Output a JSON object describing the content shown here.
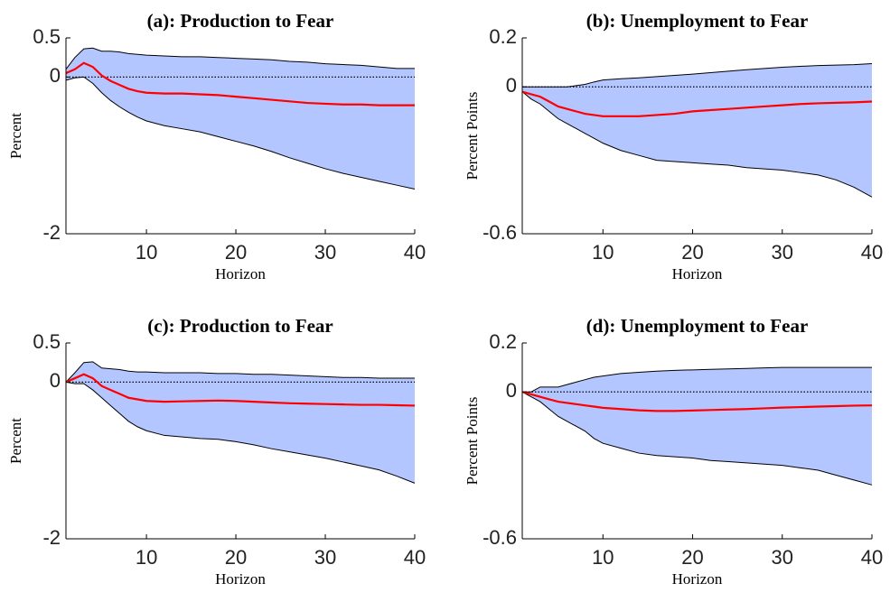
{
  "chart_data": [
    {
      "type": "line",
      "title": "(a): Production to Fear",
      "xlabel": "Horizon",
      "ylabel": "Percent",
      "x": [
        1,
        2,
        3,
        4,
        5,
        6,
        7,
        8,
        9,
        10,
        12,
        14,
        16,
        18,
        20,
        22,
        24,
        26,
        28,
        30,
        32,
        34,
        36,
        38,
        40
      ],
      "series": [
        {
          "color": "#ff0000",
          "values": [
            0.05,
            0.1,
            0.18,
            0.13,
            0.02,
            -0.05,
            -0.1,
            -0.15,
            -0.18,
            -0.2,
            -0.21,
            -0.21,
            -0.22,
            -0.23,
            -0.25,
            -0.27,
            -0.29,
            -0.31,
            -0.33,
            -0.34,
            -0.35,
            -0.35,
            -0.36,
            -0.36,
            -0.36
          ]
        }
      ],
      "band": {
        "color": "#b3c6ff",
        "upper": [
          0.1,
          0.25,
          0.36,
          0.37,
          0.33,
          0.33,
          0.32,
          0.3,
          0.29,
          0.28,
          0.27,
          0.26,
          0.26,
          0.25,
          0.24,
          0.23,
          0.22,
          0.2,
          0.19,
          0.17,
          0.16,
          0.15,
          0.13,
          0.11,
          0.11
        ],
        "lower": [
          -0.04,
          -0.01,
          0.0,
          -0.08,
          -0.2,
          -0.3,
          -0.38,
          -0.45,
          -0.51,
          -0.56,
          -0.62,
          -0.66,
          -0.7,
          -0.76,
          -0.82,
          -0.88,
          -0.95,
          -1.03,
          -1.1,
          -1.17,
          -1.23,
          -1.28,
          -1.33,
          -1.38,
          -1.43
        ]
      },
      "xlim": [
        1,
        40
      ],
      "xticks": [
        10,
        20,
        30,
        40
      ],
      "ylim": [
        -2,
        0.5
      ],
      "yticks": [
        -2,
        0,
        0.5
      ],
      "zero_line": true
    },
    {
      "type": "line",
      "title": "(b): Unemployment to Fear",
      "xlabel": "Horizon",
      "ylabel": "Percent Points",
      "x": [
        1,
        2,
        3,
        4,
        5,
        6,
        7,
        8,
        9,
        10,
        12,
        14,
        16,
        18,
        20,
        22,
        24,
        26,
        28,
        30,
        32,
        34,
        36,
        38,
        40
      ],
      "series": [
        {
          "color": "#ff0000",
          "values": [
            -0.02,
            -0.03,
            -0.04,
            -0.06,
            -0.08,
            -0.09,
            -0.1,
            -0.11,
            -0.115,
            -0.12,
            -0.12,
            -0.12,
            -0.115,
            -0.11,
            -0.1,
            -0.095,
            -0.09,
            -0.085,
            -0.08,
            -0.075,
            -0.07,
            -0.067,
            -0.065,
            -0.063,
            -0.06
          ]
        }
      ],
      "band": {
        "color": "#b3c6ff",
        "upper": [
          0.0,
          0.0,
          0.0,
          0.0,
          0.0,
          0.0,
          0.005,
          0.01,
          0.02,
          0.028,
          0.033,
          0.037,
          0.042,
          0.047,
          0.052,
          0.058,
          0.064,
          0.07,
          0.075,
          0.08,
          0.084,
          0.087,
          0.089,
          0.091,
          0.095
        ],
        "lower": [
          -0.02,
          -0.05,
          -0.07,
          -0.1,
          -0.13,
          -0.15,
          -0.17,
          -0.19,
          -0.21,
          -0.23,
          -0.26,
          -0.28,
          -0.3,
          -0.305,
          -0.31,
          -0.315,
          -0.32,
          -0.33,
          -0.335,
          -0.34,
          -0.35,
          -0.36,
          -0.38,
          -0.41,
          -0.45
        ]
      },
      "xlim": [
        1,
        40
      ],
      "xticks": [
        10,
        20,
        30,
        40
      ],
      "ylim": [
        -0.6,
        0.2
      ],
      "yticks": [
        -0.6,
        0,
        0.2
      ],
      "zero_line": true
    },
    {
      "type": "line",
      "title": "(c): Production to Fear",
      "xlabel": "Horizon",
      "ylabel": "Percent",
      "x": [
        1,
        2,
        3,
        4,
        5,
        6,
        7,
        8,
        9,
        10,
        12,
        14,
        16,
        18,
        20,
        22,
        24,
        26,
        28,
        30,
        32,
        34,
        36,
        38,
        40
      ],
      "series": [
        {
          "color": "#ff0000",
          "values": [
            0.0,
            0.05,
            0.1,
            0.05,
            -0.05,
            -0.1,
            -0.15,
            -0.2,
            -0.22,
            -0.24,
            -0.25,
            -0.245,
            -0.24,
            -0.235,
            -0.24,
            -0.25,
            -0.26,
            -0.27,
            -0.275,
            -0.28,
            -0.285,
            -0.29,
            -0.29,
            -0.295,
            -0.3
          ]
        }
      ],
      "band": {
        "color": "#b3c6ff",
        "upper": [
          0.0,
          0.12,
          0.25,
          0.26,
          0.18,
          0.17,
          0.16,
          0.14,
          0.13,
          0.13,
          0.12,
          0.12,
          0.12,
          0.11,
          0.11,
          0.1,
          0.1,
          0.09,
          0.08,
          0.07,
          0.06,
          0.06,
          0.05,
          0.05,
          0.05
        ],
        "lower": [
          0.0,
          -0.02,
          -0.02,
          -0.1,
          -0.2,
          -0.3,
          -0.4,
          -0.5,
          -0.57,
          -0.62,
          -0.68,
          -0.7,
          -0.72,
          -0.73,
          -0.76,
          -0.8,
          -0.85,
          -0.89,
          -0.93,
          -0.97,
          -1.02,
          -1.07,
          -1.12,
          -1.2,
          -1.29
        ]
      },
      "xlim": [
        1,
        40
      ],
      "xticks": [
        10,
        20,
        30,
        40
      ],
      "ylim": [
        -2,
        0.5
      ],
      "yticks": [
        -2,
        0,
        0.5
      ],
      "zero_line": true
    },
    {
      "type": "line",
      "title": "(d): Unemployment to Fear",
      "xlabel": "Horizon",
      "ylabel": "Percent Points",
      "x": [
        1,
        2,
        3,
        4,
        5,
        6,
        7,
        8,
        9,
        10,
        12,
        14,
        16,
        18,
        20,
        22,
        24,
        26,
        28,
        30,
        32,
        34,
        36,
        38,
        40
      ],
      "series": [
        {
          "color": "#ff0000",
          "values": [
            0.0,
            -0.01,
            -0.02,
            -0.03,
            -0.04,
            -0.045,
            -0.05,
            -0.055,
            -0.06,
            -0.065,
            -0.07,
            -0.075,
            -0.078,
            -0.078,
            -0.076,
            -0.074,
            -0.072,
            -0.07,
            -0.067,
            -0.064,
            -0.062,
            -0.06,
            -0.058,
            -0.056,
            -0.055
          ]
        }
      ],
      "band": {
        "color": "#b3c6ff",
        "upper": [
          0.0,
          0.0,
          0.02,
          0.02,
          0.02,
          0.03,
          0.04,
          0.05,
          0.06,
          0.065,
          0.075,
          0.08,
          0.085,
          0.088,
          0.09,
          0.092,
          0.094,
          0.096,
          0.098,
          0.1,
          0.1,
          0.1,
          0.1,
          0.1,
          0.1
        ],
        "lower": [
          0.0,
          -0.02,
          -0.04,
          -0.07,
          -0.1,
          -0.12,
          -0.14,
          -0.16,
          -0.19,
          -0.21,
          -0.23,
          -0.25,
          -0.26,
          -0.265,
          -0.27,
          -0.28,
          -0.285,
          -0.29,
          -0.295,
          -0.3,
          -0.31,
          -0.32,
          -0.34,
          -0.36,
          -0.38
        ]
      },
      "xlim": [
        1,
        40
      ],
      "xticks": [
        10,
        20,
        30,
        40
      ],
      "ylim": [
        -0.6,
        0.2
      ],
      "yticks": [
        -0.6,
        0,
        0.2
      ],
      "zero_line": true
    }
  ]
}
